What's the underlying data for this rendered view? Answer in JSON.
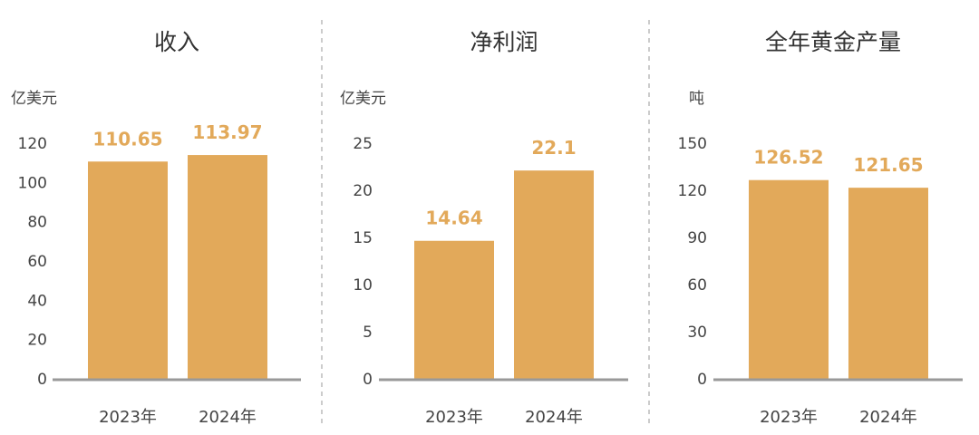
{
  "colors": {
    "bar": "#E2A95A",
    "axis": "#999999",
    "divider": "#BBBBBB",
    "text": "#444444"
  },
  "chart_data": [
    {
      "type": "bar",
      "title": "收入",
      "ylabel": "亿美元",
      "categories": [
        "2023年",
        "2024年"
      ],
      "values": [
        110.65,
        113.97
      ],
      "value_labels": [
        "110.65",
        "113.97"
      ],
      "yticks": [
        "0",
        "20",
        "40",
        "60",
        "80",
        "100",
        "120"
      ],
      "ylim": [
        0,
        120
      ],
      "grid": false
    },
    {
      "type": "bar",
      "title": "净利润",
      "ylabel": "亿美元",
      "categories": [
        "2023年",
        "2024年"
      ],
      "values": [
        14.64,
        22.1
      ],
      "value_labels": [
        "14.64",
        "22.1"
      ],
      "yticks": [
        "0",
        "5",
        "10",
        "15",
        "20",
        "25"
      ],
      "ylim": [
        0,
        25
      ],
      "grid": false
    },
    {
      "type": "bar",
      "title": "全年黄金产量",
      "ylabel": "吨",
      "categories": [
        "2023年",
        "2024年"
      ],
      "values": [
        126.52,
        121.65
      ],
      "value_labels": [
        "126.52",
        "121.65"
      ],
      "yticks": [
        "0",
        "30",
        "60",
        "90",
        "120",
        "150"
      ],
      "ylim": [
        0,
        150
      ],
      "grid": false
    }
  ]
}
